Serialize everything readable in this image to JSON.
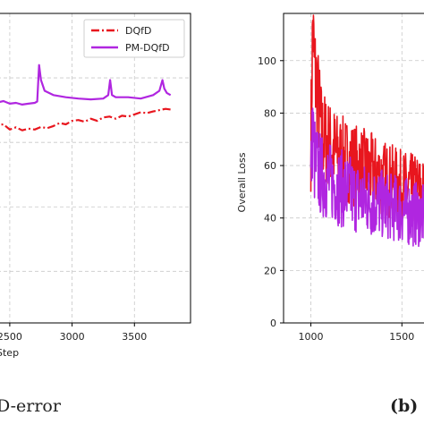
{
  "chart_data": [
    {
      "type": "line",
      "xlabel": "Step",
      "ylabel": "",
      "xlim": [
        2350,
        3950
      ],
      "ylim": [
        -1.2,
        6.0
      ],
      "xticks": [
        2500,
        3000,
        3500
      ],
      "grid": true,
      "legend": {
        "placement": "top-right",
        "entries": [
          "DQfD",
          "PM-DQfD"
        ]
      },
      "caption": "D-error",
      "series": [
        {
          "name": "DQfD",
          "color": "#e8161e",
          "style": "dashdot",
          "x": [
            2350,
            2400,
            2450,
            2500,
            2550,
            2600,
            2650,
            2700,
            2750,
            2800,
            2850,
            2900,
            2950,
            3000,
            3050,
            3100,
            3150,
            3200,
            3250,
            3300,
            3350,
            3400,
            3450,
            3500,
            3550,
            3600,
            3650,
            3700,
            3750,
            3800
          ],
          "y": [
            3.45,
            3.4,
            3.42,
            3.3,
            3.35,
            3.28,
            3.32,
            3.3,
            3.36,
            3.33,
            3.38,
            3.45,
            3.42,
            3.5,
            3.52,
            3.48,
            3.55,
            3.5,
            3.58,
            3.6,
            3.55,
            3.62,
            3.6,
            3.65,
            3.7,
            3.68,
            3.72,
            3.75,
            3.78,
            3.76
          ]
        },
        {
          "name": "PM-DQfD",
          "color": "#b026e0",
          "style": "solid",
          "x": [
            2350,
            2400,
            2450,
            2500,
            2550,
            2600,
            2650,
            2700,
            2720,
            2735,
            2750,
            2780,
            2850,
            2950,
            3050,
            3150,
            3250,
            3290,
            3305,
            3320,
            3350,
            3450,
            3550,
            3650,
            3700,
            3725,
            3740,
            3760,
            3790
          ],
          "y": [
            3.95,
            3.93,
            3.96,
            3.9,
            3.92,
            3.88,
            3.9,
            3.92,
            3.95,
            4.8,
            4.45,
            4.2,
            4.1,
            4.05,
            4.02,
            4.0,
            4.02,
            4.1,
            4.45,
            4.1,
            4.05,
            4.05,
            4.02,
            4.1,
            4.2,
            4.45,
            4.25,
            4.15,
            4.1
          ]
        }
      ]
    },
    {
      "type": "line",
      "xlabel": "",
      "ylabel": "Overall Loss",
      "xlim": [
        850,
        1700
      ],
      "ylim": [
        0,
        118
      ],
      "xticks": [
        1000,
        1500
      ],
      "yticks": [
        0,
        20,
        40,
        60,
        80,
        100
      ],
      "grid": true,
      "panel_tag": "(b)",
      "series": [
        {
          "name": "",
          "color": "#e8161e",
          "x": [
            1000,
            1010,
            1020,
            1030,
            1040,
            1050,
            1060,
            1080,
            1100,
            1125,
            1150,
            1200,
            1250,
            1300,
            1350,
            1400,
            1450,
            1500,
            1550,
            1600,
            1650,
            1700
          ],
          "y": [
            68,
            114,
            96,
            92,
            85,
            78,
            72,
            70,
            68,
            66,
            64,
            62,
            60,
            59,
            57,
            55,
            54,
            52,
            51,
            50,
            49,
            48
          ],
          "spread": [
            18,
            20,
            22,
            22,
            20,
            20,
            18,
            18,
            17,
            17,
            16,
            16,
            16,
            15,
            15,
            15,
            14,
            14,
            14,
            14,
            13,
            13
          ]
        },
        {
          "name": "",
          "color": "#b026e0",
          "x": [
            1000,
            1010,
            1020,
            1030,
            1040,
            1060,
            1080,
            1100,
            1150,
            1200,
            1250,
            1300,
            1350,
            1400,
            1450,
            1500,
            1550,
            1600,
            1650,
            1700
          ],
          "y": [
            55,
            75,
            62,
            60,
            58,
            56,
            55,
            54,
            52,
            50,
            48,
            47,
            46,
            45,
            44,
            43,
            42,
            41,
            40,
            40
          ],
          "spread": [
            16,
            18,
            18,
            17,
            17,
            16,
            16,
            15,
            15,
            15,
            14,
            14,
            14,
            13,
            13,
            13,
            13,
            12,
            12,
            12
          ]
        }
      ]
    }
  ]
}
